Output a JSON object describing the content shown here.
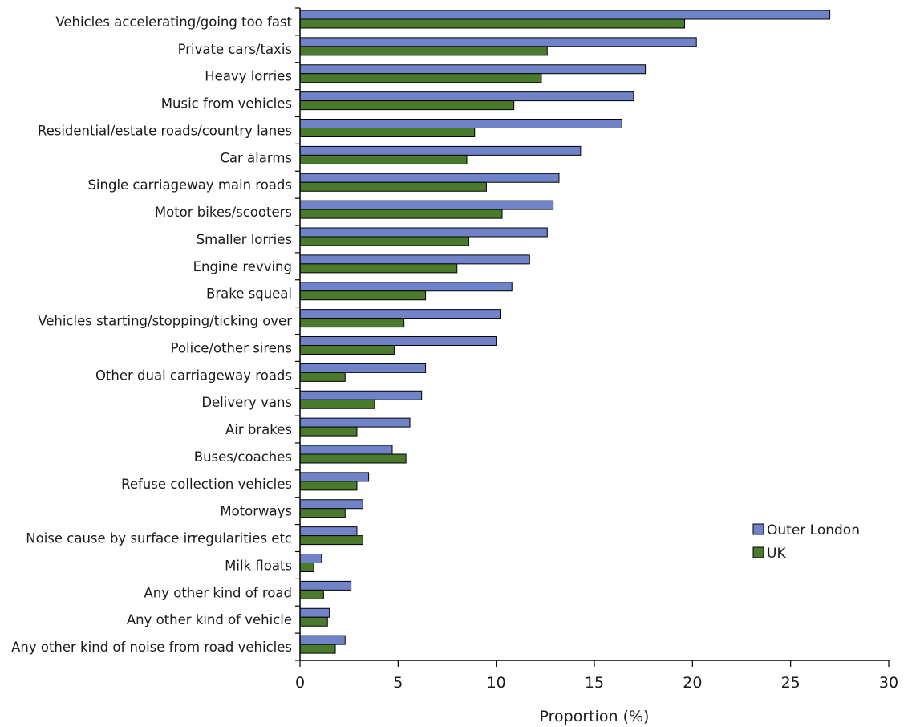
{
  "chart_data": {
    "type": "bar",
    "orientation": "horizontal",
    "categories": [
      "Vehicles accelerating/going too fast",
      "Private cars/taxis",
      "Heavy lorries",
      "Music from vehicles",
      "Residential/estate roads/country lanes",
      "Car alarms",
      "Single carriageway main roads",
      "Motor bikes/scooters",
      "Smaller lorries",
      "Engine revving",
      "Brake squeal",
      "Vehicles starting/stopping/ticking over",
      "Police/other sirens",
      "Other dual carriageway roads",
      "Delivery vans",
      "Air brakes",
      "Buses/coaches",
      "Refuse collection vehicles",
      "Motorways",
      "Noise cause by surface irregularities etc",
      "Milk floats",
      "Any other kind of road",
      "Any other kind of vehicle",
      "Any other kind of noise from road vehicles"
    ],
    "series": [
      {
        "name": "Outer London",
        "color": "#7083c8",
        "values": [
          27.0,
          20.2,
          17.6,
          17.0,
          16.4,
          14.3,
          13.2,
          12.9,
          12.6,
          11.7,
          10.8,
          10.2,
          10.0,
          6.4,
          6.2,
          5.6,
          4.7,
          3.5,
          3.2,
          2.9,
          1.1,
          2.6,
          1.5,
          2.3
        ]
      },
      {
        "name": "UK",
        "color": "#4a7a2c",
        "values": [
          19.6,
          12.6,
          12.3,
          10.9,
          8.9,
          8.5,
          9.5,
          10.3,
          8.6,
          8.0,
          6.4,
          5.3,
          4.8,
          2.3,
          3.8,
          2.9,
          5.4,
          2.9,
          2.3,
          3.2,
          0.7,
          1.2,
          1.4,
          1.8
        ]
      }
    ],
    "xlabel": "Proportion (%)",
    "ylabel": "",
    "xlim": [
      0,
      30
    ],
    "xticks": [
      0,
      5,
      10,
      15,
      20,
      25,
      30
    ],
    "legend": [
      "Outer London",
      "UK"
    ],
    "legend_position": "bottom-right",
    "grid": false
  }
}
